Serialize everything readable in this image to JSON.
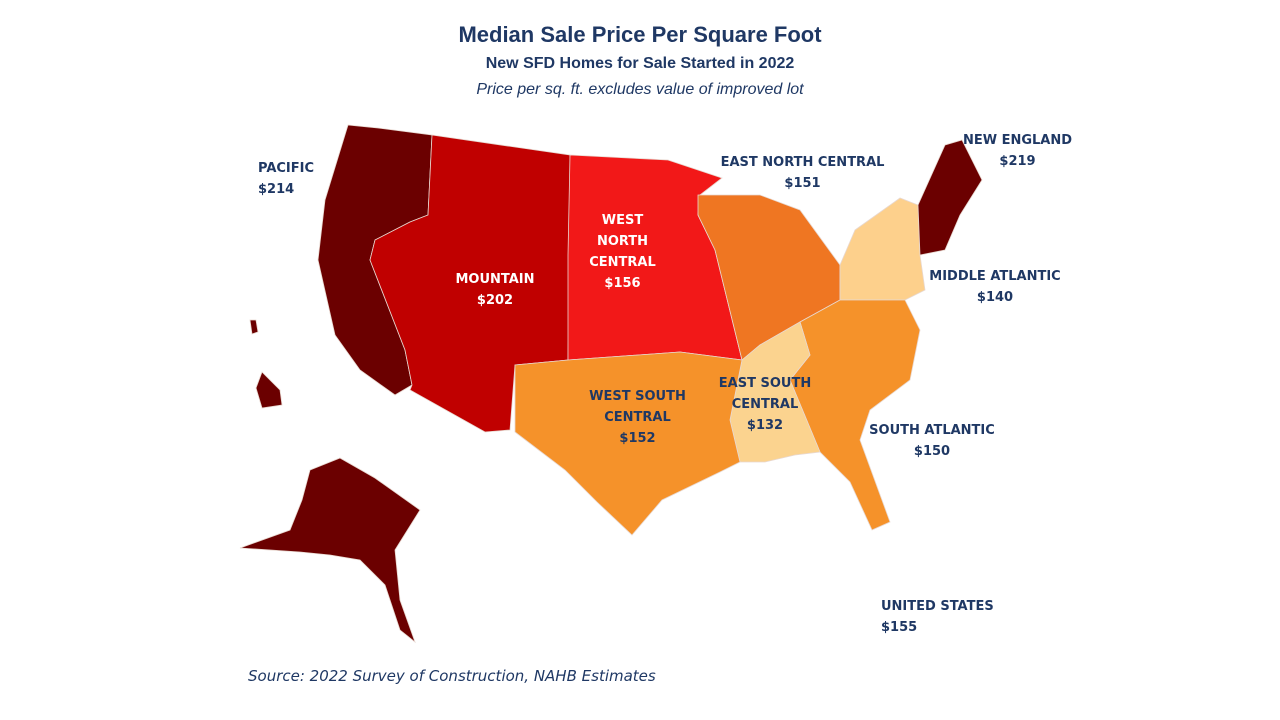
{
  "header": {
    "title": "Median Sale Price Per Square Foot",
    "subtitle": "New SFD Homes for Sale Started in 2022",
    "note": "Price per sq. ft. excludes value of improved lot"
  },
  "regions": [
    {
      "name": "PACIFIC",
      "price": "$214"
    },
    {
      "name": "MOUNTAIN",
      "price": "$202"
    },
    {
      "name": "WEST NORTH CENTRAL",
      "price": "$156"
    },
    {
      "name": "EAST NORTH CENTRAL",
      "price": "$151"
    },
    {
      "name": "NEW ENGLAND",
      "price": "$219"
    },
    {
      "name": "MIDDLE ATLANTIC",
      "price": "$140"
    },
    {
      "name": "WEST SOUTH CENTRAL",
      "price": "$152"
    },
    {
      "name": "EAST SOUTH CENTRAL",
      "price": "$132"
    },
    {
      "name": "SOUTH ATLANTIC",
      "price": "$150"
    }
  ],
  "united_states": {
    "name": "UNITED STATES",
    "price": "$155"
  },
  "source": "Source: 2022 Survey of Construction, NAHB Estimates"
}
